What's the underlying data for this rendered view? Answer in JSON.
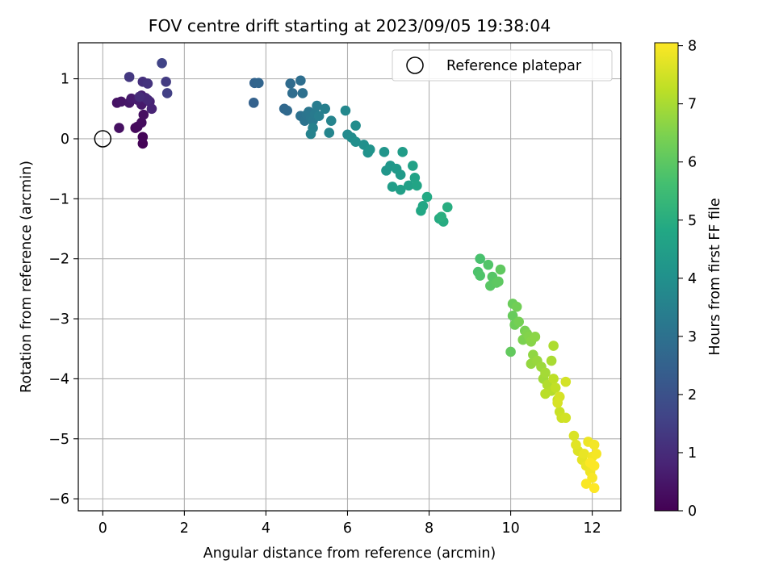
{
  "chart_data": {
    "type": "scatter",
    "title": "FOV centre drift starting at 2023/09/05 19:38:04",
    "xlabel": "Angular distance from reference (arcmin)",
    "ylabel": "Rotation from reference (arcmin)",
    "xlim": [
      -0.6,
      12.7
    ],
    "ylim": [
      -6.2,
      1.6
    ],
    "xticks": [
      0,
      2,
      4,
      6,
      8,
      10,
      12
    ],
    "yticks": [
      1,
      0,
      -1,
      -2,
      -3,
      -4,
      -5,
      -6
    ],
    "grid": true,
    "legend": {
      "position": "top-right",
      "entries": [
        {
          "label": "Reference platepar",
          "marker": "open-circle"
        }
      ]
    },
    "reference_point": {
      "x": 0,
      "y": 0
    },
    "colorbar": {
      "label": "Hours from first FF file",
      "min": 0,
      "max": 8.05,
      "ticks": [
        0,
        1,
        2,
        3,
        4,
        5,
        6,
        7,
        8
      ],
      "colormap": "viridis"
    },
    "points": [
      {
        "x": 0.98,
        "y": -0.08,
        "t": 0.05
      },
      {
        "x": 0.98,
        "y": 0.03,
        "t": 0.1
      },
      {
        "x": 0.8,
        "y": 0.18,
        "t": 0.15
      },
      {
        "x": 0.85,
        "y": 0.2,
        "t": 0.2
      },
      {
        "x": 0.95,
        "y": 0.27,
        "t": 0.25
      },
      {
        "x": 1.0,
        "y": 0.4,
        "t": 0.3
      },
      {
        "x": 0.4,
        "y": 0.18,
        "t": 0.35
      },
      {
        "x": 0.35,
        "y": 0.6,
        "t": 0.4
      },
      {
        "x": 0.45,
        "y": 0.62,
        "t": 0.45
      },
      {
        "x": 0.65,
        "y": 0.6,
        "t": 0.5
      },
      {
        "x": 0.95,
        "y": 0.57,
        "t": 0.55
      },
      {
        "x": 0.7,
        "y": 0.67,
        "t": 0.6
      },
      {
        "x": 0.85,
        "y": 0.65,
        "t": 0.65
      },
      {
        "x": 0.95,
        "y": 0.72,
        "t": 0.7
      },
      {
        "x": 1.15,
        "y": 0.62,
        "t": 0.75
      },
      {
        "x": 1.2,
        "y": 0.5,
        "t": 0.8
      },
      {
        "x": 1.05,
        "y": 0.68,
        "t": 0.85
      },
      {
        "x": 1.1,
        "y": 0.65,
        "t": 0.9
      },
      {
        "x": 0.9,
        "y": 0.7,
        "t": 1.0
      },
      {
        "x": 0.98,
        "y": 0.95,
        "t": 1.1
      },
      {
        "x": 1.1,
        "y": 0.92,
        "t": 1.2
      },
      {
        "x": 0.65,
        "y": 1.03,
        "t": 1.3
      },
      {
        "x": 1.55,
        "y": 0.95,
        "t": 1.4
      },
      {
        "x": 1.58,
        "y": 0.76,
        "t": 1.5
      },
      {
        "x": 1.45,
        "y": 1.26,
        "t": 1.6
      },
      {
        "x": 3.7,
        "y": 0.6,
        "t": 2.5
      },
      {
        "x": 3.72,
        "y": 0.93,
        "t": 2.55
      },
      {
        "x": 3.82,
        "y": 0.93,
        "t": 2.6
      },
      {
        "x": 4.45,
        "y": 0.5,
        "t": 2.7
      },
      {
        "x": 4.52,
        "y": 0.47,
        "t": 2.75
      },
      {
        "x": 4.6,
        "y": 0.92,
        "t": 2.8
      },
      {
        "x": 4.65,
        "y": 0.76,
        "t": 2.85
      },
      {
        "x": 4.85,
        "y": 0.97,
        "t": 2.9
      },
      {
        "x": 4.9,
        "y": 0.76,
        "t": 2.95
      },
      {
        "x": 4.85,
        "y": 0.38,
        "t": 3.0
      },
      {
        "x": 4.95,
        "y": 0.3,
        "t": 3.05
      },
      {
        "x": 5.0,
        "y": 0.4,
        "t": 3.1
      },
      {
        "x": 5.05,
        "y": 0.45,
        "t": 3.15
      },
      {
        "x": 5.1,
        "y": 0.35,
        "t": 3.2
      },
      {
        "x": 5.15,
        "y": 0.3,
        "t": 3.25
      },
      {
        "x": 5.2,
        "y": 0.42,
        "t": 3.3
      },
      {
        "x": 5.25,
        "y": 0.55,
        "t": 3.35
      },
      {
        "x": 5.3,
        "y": 0.38,
        "t": 3.4
      },
      {
        "x": 5.45,
        "y": 0.5,
        "t": 3.45
      },
      {
        "x": 5.15,
        "y": 0.18,
        "t": 3.5
      },
      {
        "x": 5.1,
        "y": 0.08,
        "t": 3.55
      },
      {
        "x": 5.6,
        "y": 0.3,
        "t": 3.6
      },
      {
        "x": 5.55,
        "y": 0.1,
        "t": 3.65
      },
      {
        "x": 5.95,
        "y": 0.47,
        "t": 3.75
      },
      {
        "x": 6.0,
        "y": 0.07,
        "t": 3.8
      },
      {
        "x": 6.1,
        "y": 0.02,
        "t": 3.85
      },
      {
        "x": 6.2,
        "y": 0.22,
        "t": 3.9
      },
      {
        "x": 6.2,
        "y": -0.05,
        "t": 3.95
      },
      {
        "x": 6.4,
        "y": -0.1,
        "t": 4.0
      },
      {
        "x": 6.5,
        "y": -0.23,
        "t": 4.05
      },
      {
        "x": 6.55,
        "y": -0.18,
        "t": 4.1
      },
      {
        "x": 6.9,
        "y": -0.22,
        "t": 4.15
      },
      {
        "x": 6.95,
        "y": -0.53,
        "t": 4.2
      },
      {
        "x": 7.05,
        "y": -0.45,
        "t": 4.25
      },
      {
        "x": 7.2,
        "y": -0.5,
        "t": 4.3
      },
      {
        "x": 7.3,
        "y": -0.6,
        "t": 4.35
      },
      {
        "x": 7.35,
        "y": -0.22,
        "t": 4.4
      },
      {
        "x": 7.1,
        "y": -0.8,
        "t": 4.45
      },
      {
        "x": 7.3,
        "y": -0.85,
        "t": 4.5
      },
      {
        "x": 7.5,
        "y": -0.78,
        "t": 4.55
      },
      {
        "x": 7.6,
        "y": -0.45,
        "t": 4.6
      },
      {
        "x": 7.65,
        "y": -0.65,
        "t": 4.65
      },
      {
        "x": 7.7,
        "y": -0.78,
        "t": 4.7
      },
      {
        "x": 7.85,
        "y": -1.12,
        "t": 4.75
      },
      {
        "x": 7.8,
        "y": -1.2,
        "t": 4.8
      },
      {
        "x": 7.95,
        "y": -0.97,
        "t": 4.85
      },
      {
        "x": 8.25,
        "y": -1.33,
        "t": 4.9
      },
      {
        "x": 8.35,
        "y": -1.38,
        "t": 4.95
      },
      {
        "x": 8.45,
        "y": -1.14,
        "t": 5.0
      },
      {
        "x": 8.3,
        "y": -1.3,
        "t": 5.05
      },
      {
        "x": 9.25,
        "y": -2.0,
        "t": 5.7
      },
      {
        "x": 9.2,
        "y": -2.22,
        "t": 5.75
      },
      {
        "x": 9.25,
        "y": -2.28,
        "t": 5.8
      },
      {
        "x": 9.45,
        "y": -2.1,
        "t": 5.85
      },
      {
        "x": 9.55,
        "y": -2.3,
        "t": 5.9
      },
      {
        "x": 9.5,
        "y": -2.45,
        "t": 5.95
      },
      {
        "x": 9.65,
        "y": -2.4,
        "t": 6.0
      },
      {
        "x": 9.7,
        "y": -2.38,
        "t": 6.02
      },
      {
        "x": 9.75,
        "y": -2.18,
        "t": 6.05
      },
      {
        "x": 10.0,
        "y": -3.55,
        "t": 6.1
      },
      {
        "x": 10.05,
        "y": -2.95,
        "t": 6.15
      },
      {
        "x": 10.05,
        "y": -2.75,
        "t": 6.2
      },
      {
        "x": 10.1,
        "y": -3.1,
        "t": 6.25
      },
      {
        "x": 10.15,
        "y": -2.8,
        "t": 6.3
      },
      {
        "x": 10.2,
        "y": -3.05,
        "t": 6.35
      },
      {
        "x": 10.35,
        "y": -3.2,
        "t": 6.4
      },
      {
        "x": 10.3,
        "y": -3.35,
        "t": 6.45
      },
      {
        "x": 10.4,
        "y": -3.25,
        "t": 6.5
      },
      {
        "x": 10.45,
        "y": -3.3,
        "t": 6.55
      },
      {
        "x": 10.5,
        "y": -3.38,
        "t": 6.6
      },
      {
        "x": 10.6,
        "y": -3.3,
        "t": 6.65
      },
      {
        "x": 10.55,
        "y": -3.6,
        "t": 6.7
      },
      {
        "x": 10.5,
        "y": -3.75,
        "t": 6.75
      },
      {
        "x": 10.65,
        "y": -3.7,
        "t": 6.8
      },
      {
        "x": 10.75,
        "y": -3.8,
        "t": 6.85
      },
      {
        "x": 10.8,
        "y": -4.0,
        "t": 6.9
      },
      {
        "x": 10.85,
        "y": -3.9,
        "t": 6.95
      },
      {
        "x": 11.0,
        "y": -3.7,
        "t": 7.0
      },
      {
        "x": 11.05,
        "y": -3.45,
        "t": 7.05
      },
      {
        "x": 10.9,
        "y": -4.1,
        "t": 7.1
      },
      {
        "x": 11.0,
        "y": -4.2,
        "t": 7.15
      },
      {
        "x": 10.85,
        "y": -4.25,
        "t": 7.2
      },
      {
        "x": 11.05,
        "y": -4.0,
        "t": 7.25
      },
      {
        "x": 11.1,
        "y": -4.15,
        "t": 7.3
      },
      {
        "x": 11.15,
        "y": -4.35,
        "t": 7.35
      },
      {
        "x": 11.2,
        "y": -4.55,
        "t": 7.4
      },
      {
        "x": 11.25,
        "y": -4.65,
        "t": 7.45
      },
      {
        "x": 11.35,
        "y": -4.65,
        "t": 7.5
      },
      {
        "x": 11.35,
        "y": -4.05,
        "t": 7.52
      },
      {
        "x": 11.2,
        "y": -4.3,
        "t": 7.55
      },
      {
        "x": 11.15,
        "y": -4.4,
        "t": 7.57
      },
      {
        "x": 11.55,
        "y": -4.95,
        "t": 7.6
      },
      {
        "x": 11.65,
        "y": -5.2,
        "t": 7.65
      },
      {
        "x": 11.6,
        "y": -5.1,
        "t": 7.7
      },
      {
        "x": 11.75,
        "y": -5.35,
        "t": 7.75
      },
      {
        "x": 11.8,
        "y": -5.25,
        "t": 7.8
      },
      {
        "x": 11.85,
        "y": -5.45,
        "t": 7.82
      },
      {
        "x": 11.9,
        "y": -5.05,
        "t": 7.85
      },
      {
        "x": 11.95,
        "y": -5.55,
        "t": 7.87
      },
      {
        "x": 12.0,
        "y": -5.3,
        "t": 7.9
      },
      {
        "x": 12.05,
        "y": -5.1,
        "t": 7.92
      },
      {
        "x": 12.1,
        "y": -5.25,
        "t": 7.95
      },
      {
        "x": 12.0,
        "y": -5.65,
        "t": 7.97
      },
      {
        "x": 11.85,
        "y": -5.75,
        "t": 8.0
      },
      {
        "x": 12.05,
        "y": -5.45,
        "t": 8.02
      },
      {
        "x": 11.95,
        "y": -5.4,
        "t": 8.03
      },
      {
        "x": 12.05,
        "y": -5.82,
        "t": 8.05
      }
    ]
  }
}
